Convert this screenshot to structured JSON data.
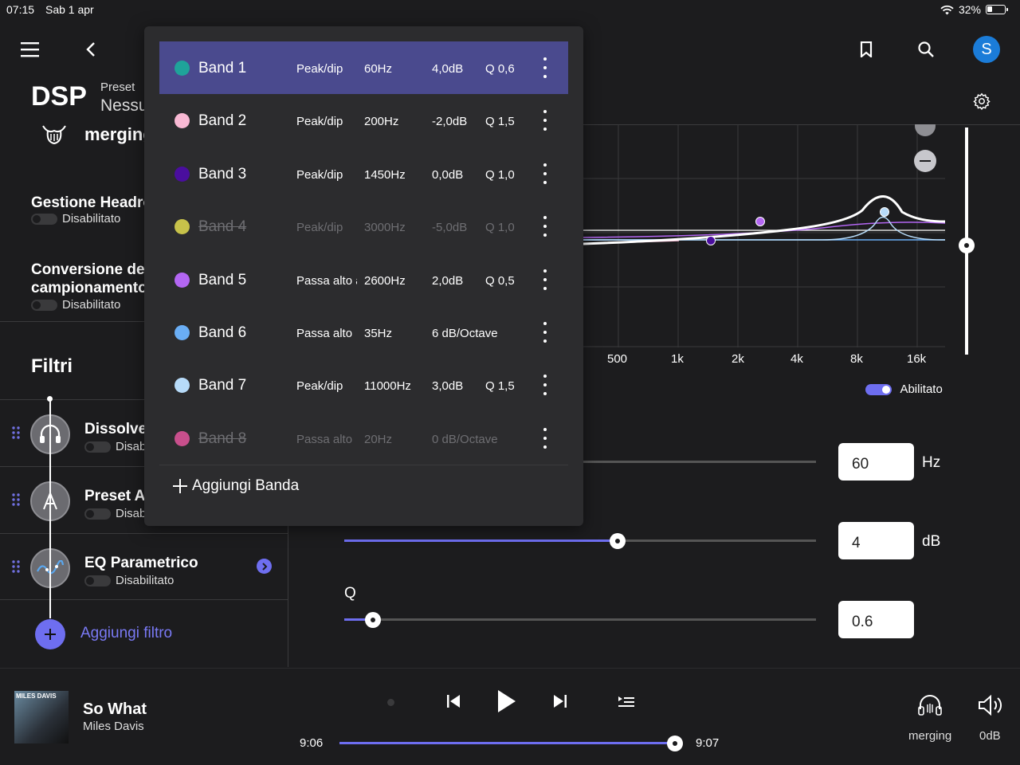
{
  "status": {
    "time": "07:15",
    "date": "Sab 1 apr",
    "battery": "32%",
    "battery_level": 0.32
  },
  "header": {
    "title": "DSP",
    "preset_label": "Preset",
    "preset_value": "Nessu",
    "avatar_letter": "S"
  },
  "device": {
    "name": "merging"
  },
  "settings": [
    {
      "title": "Gestione Headro",
      "status": "Disabilitato"
    },
    {
      "title_line1": "Conversione della",
      "title_line2": "campionamento",
      "status": "Disabilitato"
    }
  ],
  "filters": {
    "section_title": "Filtri",
    "items": [
      {
        "name": "Dissolver",
        "status": "Disab",
        "icon": "headphones-icon"
      },
      {
        "name": "Preset Au",
        "status": "Disab",
        "icon": "preset-icon"
      },
      {
        "name": "EQ Parametrico",
        "status": "Disabilitato",
        "icon": "eq-curve-icon"
      }
    ],
    "add_label": "Aggiungi filtro"
  },
  "bands": [
    {
      "name": "Band 1",
      "type": "Peak/dip",
      "freq": "60Hz",
      "gain": "4,0dB",
      "q": "Q 0,6",
      "color": "#1fa39a",
      "enabled": true,
      "selected": true
    },
    {
      "name": "Band 2",
      "type": "Peak/dip",
      "freq": "200Hz",
      "gain": "-2,0dB",
      "q": "Q 1,5",
      "color": "#f9b9d4",
      "enabled": true
    },
    {
      "name": "Band 3",
      "type": "Peak/dip",
      "freq": "1450Hz",
      "gain": "0,0dB",
      "q": "Q 1,0",
      "color": "#4a0e9e",
      "enabled": true
    },
    {
      "name": "Band 4",
      "type": "Peak/dip",
      "freq": "3000Hz",
      "gain": "-5,0dB",
      "q": "Q 1,0",
      "color": "#c7c24a",
      "enabled": false
    },
    {
      "name": "Band 5",
      "type": "Passa alto a",
      "freq": "2600Hz",
      "gain": "2,0dB",
      "q": "Q 0,5",
      "color": "#b366f2",
      "enabled": true
    },
    {
      "name": "Band 6",
      "type": "Passa alto",
      "freq": "35Hz",
      "gain": "6 dB/Octave",
      "q": "",
      "color": "#6aaef5",
      "enabled": true
    },
    {
      "name": "Band 7",
      "type": "Peak/dip",
      "freq": "11000Hz",
      "gain": "3,0dB",
      "q": "Q 1,5",
      "color": "#b7dbf9",
      "enabled": true
    },
    {
      "name": "Band 8",
      "type": "Passa alto",
      "freq": "20Hz",
      "gain": "0 dB/Octave",
      "q": "",
      "color": "#c84f8c",
      "enabled": false
    }
  ],
  "add_band_label": "Aggiungi Banda",
  "graph": {
    "x_ticks": [
      "500",
      "1k",
      "2k",
      "4k",
      "8k",
      "16k"
    ],
    "enabled_label": "Abilitato"
  },
  "controls": {
    "freq": {
      "value": "60",
      "unit": "Hz"
    },
    "gain": {
      "value": "4",
      "unit": "dB",
      "fraction": 0.58
    },
    "q": {
      "label": "Q",
      "value": "0.6",
      "fraction": 0.06
    }
  },
  "player": {
    "track": "So What",
    "artist": "Miles Davis",
    "album_text": "MILES DAVIS",
    "elapsed": "9:06",
    "remaining": "9:07",
    "progress": 0.98,
    "device": "merging",
    "volume": "0dB"
  }
}
